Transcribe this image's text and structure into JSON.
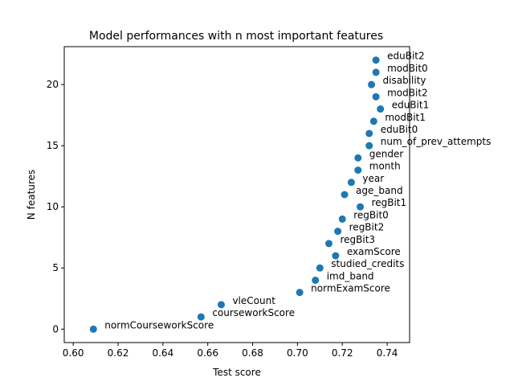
{
  "chart_data": {
    "type": "scatter",
    "title": "Model performances with n most important features",
    "xlabel": "Test score",
    "ylabel": "N features",
    "xlim": [
      0.596,
      0.75
    ],
    "ylim": [
      -1.1,
      23.1
    ],
    "xticks": [
      "0.60",
      "0.62",
      "0.64",
      "0.66",
      "0.68",
      "0.70",
      "0.72",
      "0.74"
    ],
    "yticks": [
      "0",
      "5",
      "10",
      "15",
      "20"
    ],
    "grid": false,
    "marker_color": "#1f77b4",
    "points": [
      {
        "x": 0.609,
        "y": 0,
        "label": "normCourseworkScore"
      },
      {
        "x": 0.657,
        "y": 1,
        "label": "courseworkScore"
      },
      {
        "x": 0.666,
        "y": 2,
        "label": "vleCount"
      },
      {
        "x": 0.701,
        "y": 3,
        "label": "normExamScore"
      },
      {
        "x": 0.708,
        "y": 4,
        "label": "imd_band"
      },
      {
        "x": 0.71,
        "y": 5,
        "label": "studied_credits"
      },
      {
        "x": 0.717,
        "y": 6,
        "label": "examScore"
      },
      {
        "x": 0.714,
        "y": 7,
        "label": "regBit3"
      },
      {
        "x": 0.718,
        "y": 8,
        "label": "regBit2"
      },
      {
        "x": 0.72,
        "y": 9,
        "label": "regBit0"
      },
      {
        "x": 0.728,
        "y": 10,
        "label": "regBit1"
      },
      {
        "x": 0.721,
        "y": 11,
        "label": "age_band"
      },
      {
        "x": 0.724,
        "y": 12,
        "label": "year"
      },
      {
        "x": 0.727,
        "y": 13,
        "label": "month"
      },
      {
        "x": 0.727,
        "y": 14,
        "label": "gender"
      },
      {
        "x": 0.732,
        "y": 15,
        "label": "num_of_prev_attempts"
      },
      {
        "x": 0.732,
        "y": 16,
        "label": "eduBit0"
      },
      {
        "x": 0.734,
        "y": 17,
        "label": "modBit1"
      },
      {
        "x": 0.737,
        "y": 18,
        "label": "eduBit1"
      },
      {
        "x": 0.735,
        "y": 19,
        "label": "modBit2"
      },
      {
        "x": 0.733,
        "y": 20,
        "label": "disability"
      },
      {
        "x": 0.735,
        "y": 21,
        "label": "modBit0"
      },
      {
        "x": 0.735,
        "y": 22,
        "label": "eduBit2"
      }
    ]
  }
}
